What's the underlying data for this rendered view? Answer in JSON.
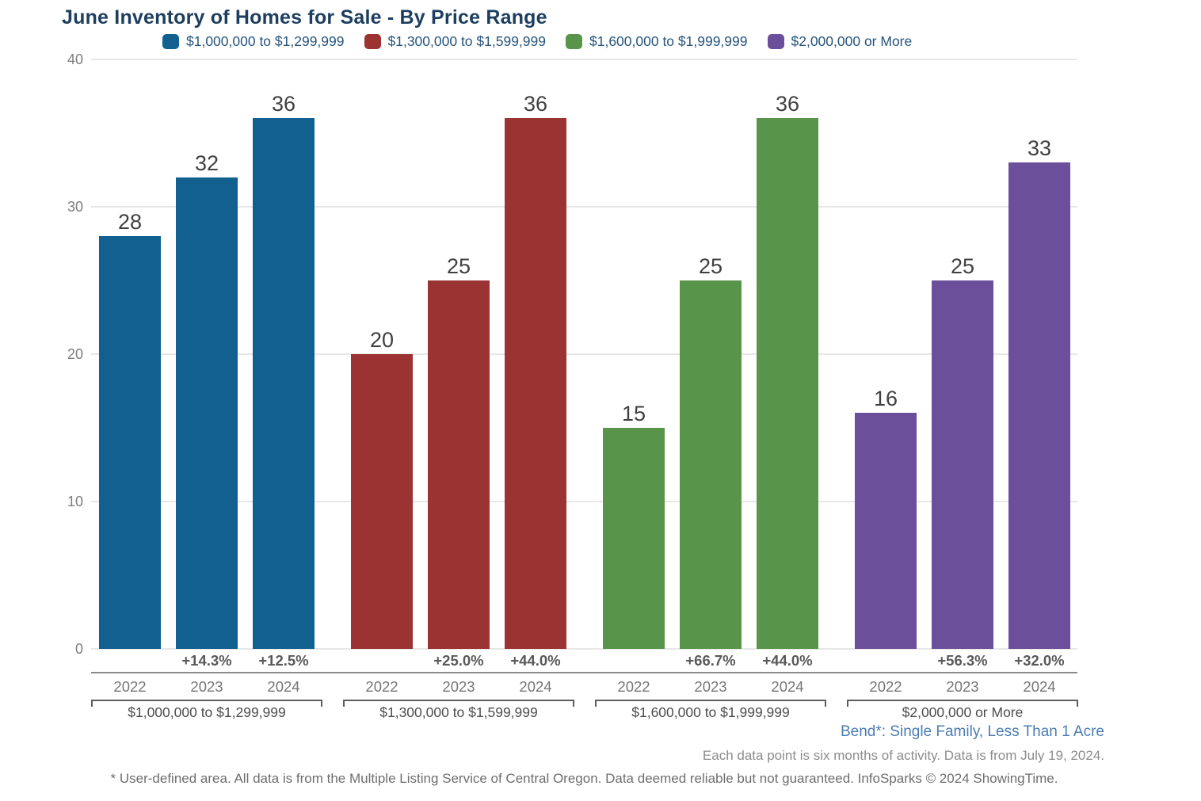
{
  "chart_data": {
    "type": "bar",
    "title": "June Inventory of Homes for Sale - By Price Range",
    "ylim": [
      0,
      40
    ],
    "yticks": [
      0,
      10,
      20,
      30,
      40
    ],
    "grid": true,
    "legend_position": "top",
    "year_labels": [
      "2022",
      "2023",
      "2024"
    ],
    "groups": [
      {
        "label": "$1,000,000 to $1,299,999",
        "color": "#12608F",
        "values": [
          28,
          32,
          36
        ],
        "pct_changes": [
          "",
          "+14.3%",
          "+12.5%"
        ]
      },
      {
        "label": "$1,300,000 to $1,599,999",
        "color": "#9A3332",
        "values": [
          20,
          25,
          36
        ],
        "pct_changes": [
          "",
          "+25.0%",
          "+44.0%"
        ]
      },
      {
        "label": "$1,600,000 to $1,999,999",
        "color": "#58954A",
        "values": [
          15,
          25,
          36
        ],
        "pct_changes": [
          "",
          "+66.7%",
          "+44.0%"
        ]
      },
      {
        "label": "$2,000,000 or More",
        "color": "#6C4F9B",
        "values": [
          16,
          25,
          33
        ],
        "pct_changes": [
          "",
          "+56.3%",
          "+32.0%"
        ]
      }
    ]
  },
  "footer": {
    "area_label": "Bend*: Single Family, Less Than 1 Acre",
    "data_note": "Each data point is six months of activity. Data is from July 19, 2024.",
    "disclaimer": "* User-defined area. All data is from the Multiple Listing Service of Central Oregon. Data deemed reliable but not guaranteed. InfoSparks © 2024 ShowingTime."
  },
  "colors": {
    "title_text": "#1D3E5F",
    "legend_text": "#26547C",
    "area_caption_text": "#4A7CB3",
    "value_label_text": "#404040",
    "axis_text": "#7D7D7D"
  }
}
